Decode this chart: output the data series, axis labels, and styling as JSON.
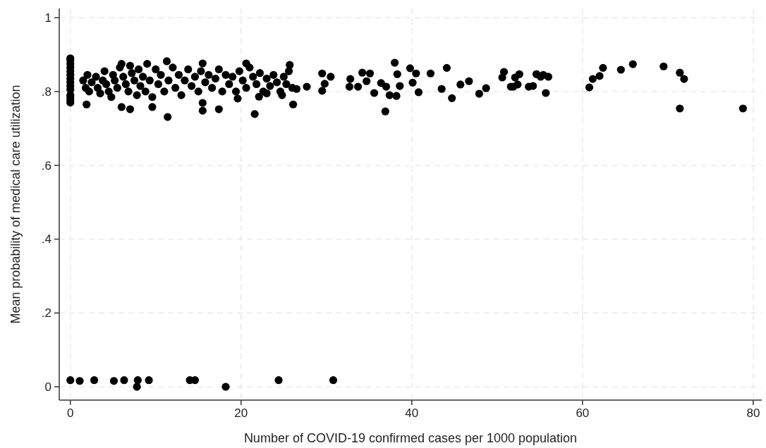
{
  "chart_data": {
    "type": "scatter",
    "xlabel": "Number of COVID-19 confirmed cases per 1000 population",
    "ylabel": "Mean probability of medical care utilization",
    "xlim": [
      -1.3,
      81
    ],
    "ylim": [
      -0.036,
      1.025
    ],
    "xticks": [
      0,
      20,
      40,
      60,
      80
    ],
    "yticks": [
      0,
      {
        "value": 0.2,
        "label": ".2"
      },
      {
        "value": 0.4,
        "label": ".4"
      },
      {
        "value": 0.6,
        "label": ".6"
      },
      {
        "value": 0.8,
        "label": ".8"
      },
      1
    ],
    "grid": true,
    "marker": "circle",
    "series": [
      {
        "color": "#000000",
        "x": [
          0,
          0,
          0,
          0,
          0,
          0,
          0,
          0,
          0,
          0,
          0,
          0,
          0,
          0,
          1.5,
          1.8,
          2,
          2.2,
          2.5,
          3,
          3.2,
          3.5,
          3.8,
          4,
          4.2,
          4.5,
          4.8,
          5,
          5.2,
          5.5,
          5.8,
          6,
          6.2,
          6.5,
          6.8,
          7,
          7.2,
          7.5,
          7.8,
          8,
          8.2,
          8.5,
          8.8,
          9,
          9.3,
          9.6,
          10,
          10.3,
          10.6,
          11,
          11.5,
          12,
          12.3,
          12.7,
          13,
          13.4,
          13.8,
          14.2,
          14.6,
          15,
          15.3,
          15.8,
          16.2,
          16.6,
          17,
          17.4,
          17.8,
          18.2,
          18.6,
          19,
          19.4,
          19.8,
          20.2,
          20.6,
          21,
          21.4,
          21.8,
          22.2,
          22.6,
          23,
          23.4,
          23.8,
          24.2,
          24.6,
          25,
          25.3,
          25.6,
          26,
          24.8,
          23,
          1.9,
          6,
          7,
          11.4,
          9.6,
          11.3,
          15.5,
          15.5,
          17.4,
          21.6,
          22.1,
          19.6,
          15.5,
          20.6,
          25.7,
          26.1,
          26.5,
          27.7,
          29.5,
          29.8,
          29.5,
          30.5,
          32.8,
          32.7,
          33.7,
          34.2,
          35.1,
          34.7,
          36.4,
          35.6,
          37,
          36.9,
          37.4,
          38,
          38.3,
          38.6,
          38.2,
          39.8,
          40.5,
          40.1,
          40.8,
          42.2,
          44.1,
          43.5,
          44.7,
          45.7,
          46.7,
          47.9,
          48.7,
          50.8,
          50.6,
          51.6,
          52.1,
          52.6,
          52.4,
          51.9,
          53.7,
          54.2,
          54.6,
          55.1,
          55.4,
          56,
          55.7,
          60.8,
          61.2,
          62,
          62.4,
          64.5,
          65.9,
          69.5,
          71.4,
          71.9,
          71.4,
          78.8,
          0,
          1.1,
          2.8,
          5.1,
          6.3,
          7.8,
          7.9,
          9.2,
          14,
          14.6,
          18.2,
          24.4,
          30.8
        ],
        "values": [
          0.89,
          0.885,
          0.875,
          0.865,
          0.855,
          0.845,
          0.835,
          0.825,
          0.815,
          0.805,
          0.79,
          0.785,
          0.777,
          0.77,
          0.83,
          0.81,
          0.845,
          0.8,
          0.825,
          0.84,
          0.81,
          0.795,
          0.83,
          0.855,
          0.82,
          0.8,
          0.785,
          0.845,
          0.83,
          0.81,
          0.865,
          0.875,
          0.84,
          0.82,
          0.8,
          0.87,
          0.85,
          0.83,
          0.79,
          0.86,
          0.815,
          0.84,
          0.8,
          0.875,
          0.83,
          0.785,
          0.86,
          0.82,
          0.845,
          0.8,
          0.83,
          0.865,
          0.81,
          0.845,
          0.79,
          0.83,
          0.86,
          0.815,
          0.84,
          0.8,
          0.855,
          0.825,
          0.845,
          0.81,
          0.835,
          0.86,
          0.8,
          0.845,
          0.82,
          0.84,
          0.8,
          0.855,
          0.83,
          0.81,
          0.865,
          0.84,
          0.82,
          0.85,
          0.8,
          0.835,
          0.815,
          0.845,
          0.825,
          0.8,
          0.84,
          0.82,
          0.855,
          0.81,
          0.79,
          0.795,
          0.765,
          0.758,
          0.752,
          0.731,
          0.758,
          0.882,
          0.748,
          0.769,
          0.752,
          0.739,
          0.786,
          0.781,
          0.876,
          0.876,
          0.872,
          0.765,
          0.807,
          0.813,
          0.849,
          0.821,
          0.802,
          0.84,
          0.834,
          0.813,
          0.813,
          0.851,
          0.849,
          0.828,
          0.823,
          0.796,
          0.813,
          0.746,
          0.79,
          0.878,
          0.847,
          0.815,
          0.788,
          0.863,
          0.849,
          0.824,
          0.798,
          0.849,
          0.864,
          0.807,
          0.782,
          0.819,
          0.828,
          0.794,
          0.809,
          0.853,
          0.838,
          0.813,
          0.838,
          0.847,
          0.819,
          0.813,
          0.813,
          0.815,
          0.847,
          0.84,
          0.845,
          0.84,
          0.796,
          0.811,
          0.834,
          0.842,
          0.864,
          0.859,
          0.874,
          0.868,
          0.851,
          0.834,
          0.754,
          0.754,
          0.018,
          0.016,
          0.018,
          0.016,
          0.018,
          0,
          0.018,
          0.018,
          0.018,
          0.018,
          0,
          0.018,
          0.018
        ]
      }
    ]
  }
}
